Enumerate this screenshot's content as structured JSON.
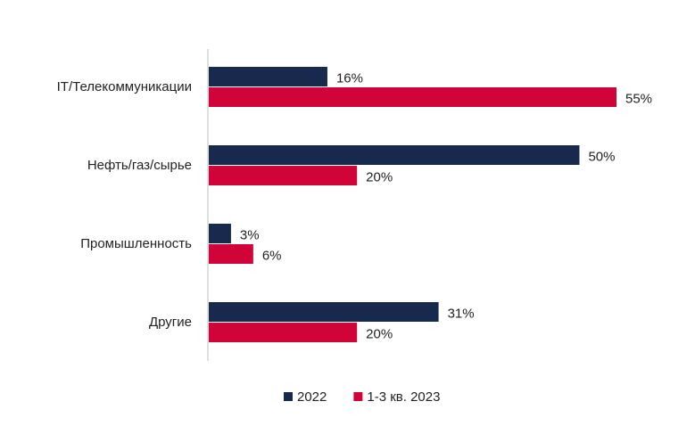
{
  "chart_data": {
    "type": "bar",
    "orientation": "horizontal",
    "categories": [
      "IT/Телекоммуникации",
      "Нефть/газ/сырье",
      "Промышленность",
      "Другие"
    ],
    "series": [
      {
        "name": "2022",
        "color": "#17294d",
        "values": [
          16,
          50,
          3,
          31
        ],
        "value_labels": [
          "16%",
          "50%",
          "3%",
          "31%"
        ]
      },
      {
        "name": "1-3 кв. 2023",
        "color": "#d1043a",
        "values": [
          55,
          20,
          6,
          20
        ],
        "value_labels": [
          "55%",
          "20%",
          "6%",
          "20%"
        ]
      }
    ],
    "legend": "bottom"
  }
}
